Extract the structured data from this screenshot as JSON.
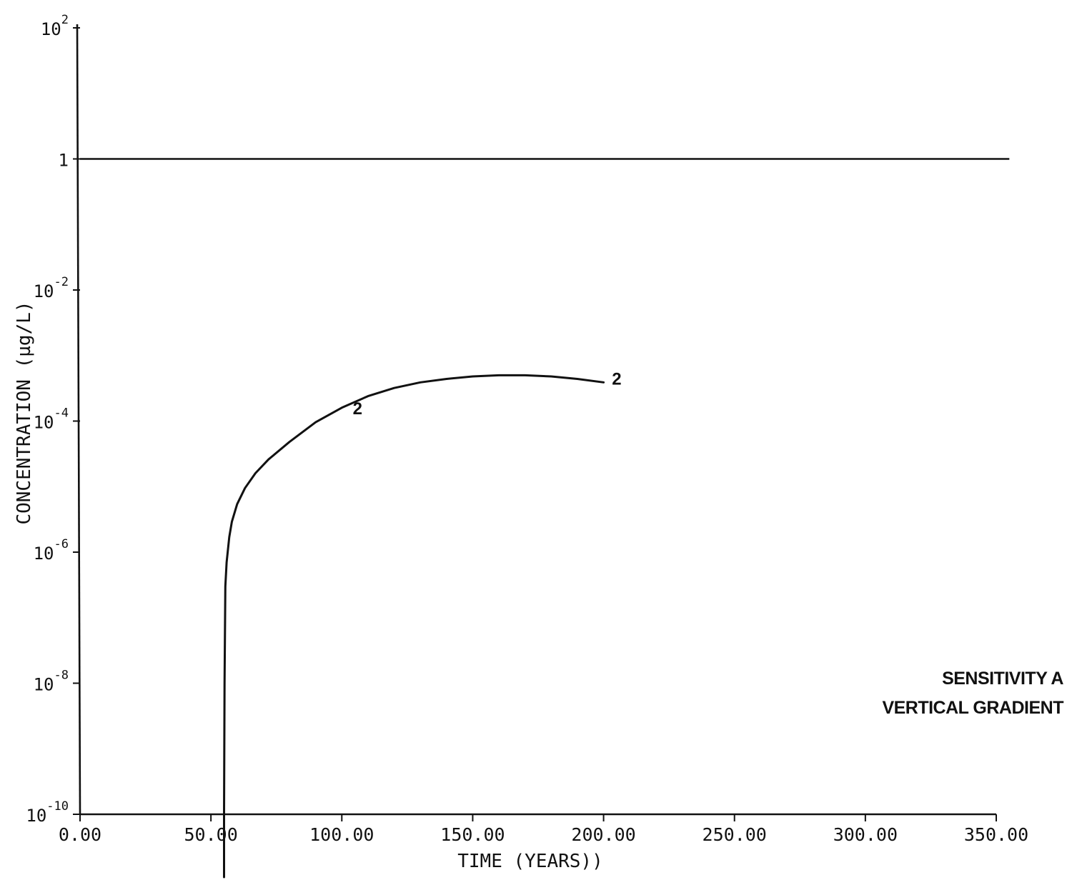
{
  "chart_data": {
    "type": "line",
    "xlabel": "TIME (YEARS))",
    "ylabel": "CONCENTRATION (µg/L)",
    "xlim": [
      0,
      350
    ],
    "ylim": [
      1e-10,
      100
    ],
    "y_scale": "log",
    "grid": false,
    "x_tick_labels": [
      "0.00",
      "50.00",
      "100.00",
      "150.00",
      "200.00",
      "250.00",
      "300.00",
      "350.00"
    ],
    "x_ticks": [
      0,
      50,
      100,
      150,
      200,
      250,
      300,
      350
    ],
    "y_ticks": [
      {
        "value": 1e-10,
        "base": "10",
        "exp": "-10"
      },
      {
        "value": 1e-08,
        "base": "10",
        "exp": "-8"
      },
      {
        "value": 1e-06,
        "base": "10",
        "exp": "-6"
      },
      {
        "value": 0.0001,
        "base": "10",
        "exp": "-4"
      },
      {
        "value": 0.01,
        "base": "10",
        "exp": "-2"
      },
      {
        "value": 1,
        "base": "1",
        "exp": ""
      },
      {
        "value": 100,
        "base": "10",
        "exp": "2"
      }
    ],
    "series": [
      {
        "name": "2",
        "x": [
          55,
          55.2,
          55.5,
          56,
          57,
          58,
          60,
          63,
          67,
          72,
          80,
          90,
          100,
          110,
          120,
          130,
          140,
          150,
          160,
          170,
          180,
          190,
          200
        ],
        "y": [
          1e-10,
          1e-08,
          3e-07,
          7e-07,
          1.7e-06,
          2.9e-06,
          5.4e-06,
          9.5e-06,
          1.6e-05,
          2.6e-05,
          4.8e-05,
          9.6e-05,
          0.00016,
          0.00024,
          0.00032,
          0.00039,
          0.00044,
          0.00048,
          0.0005,
          0.0005,
          0.00048,
          0.00044,
          0.00039
        ]
      }
    ],
    "reference_lines": [
      {
        "y": 1,
        "x_start": 0,
        "x_end": 355
      }
    ],
    "series_markers": [
      {
        "label": "2",
        "x": 106,
        "y": 0.00016
      },
      {
        "label": "2",
        "x": 205,
        "y": 0.00045
      }
    ],
    "annotation": [
      "SENSITIVITY A",
      "VERTICAL GRADIENT"
    ]
  }
}
